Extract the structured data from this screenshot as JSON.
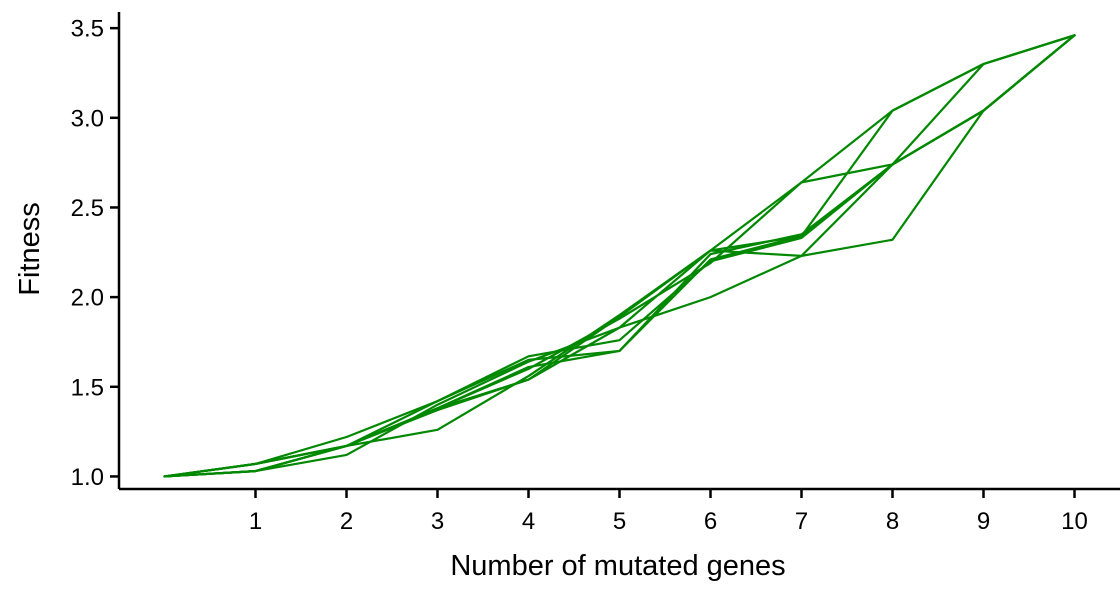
{
  "chart_data": {
    "type": "line",
    "title": "",
    "xlabel": "Number of mutated genes",
    "ylabel": "Fitness",
    "xlim": [
      -0.5,
      10.5
    ],
    "ylim": [
      0.93,
      3.59
    ],
    "xticks": [
      1,
      2,
      3,
      4,
      5,
      6,
      7,
      8,
      9,
      10
    ],
    "yticks": [
      1.0,
      1.5,
      2.0,
      2.5,
      3.0,
      3.5
    ],
    "ytick_labels": [
      "1.0",
      "1.5",
      "2.0",
      "2.5",
      "3.0",
      "3.5"
    ],
    "grid": false,
    "legend": "none",
    "line_color": "#008800",
    "x": [
      0,
      1,
      2,
      3,
      4,
      5,
      6,
      7,
      8,
      9,
      10
    ],
    "series": [
      {
        "values": [
          1.0,
          1.07,
          1.22,
          1.42,
          1.67,
          1.76,
          2.2,
          2.33,
          2.74,
          3.3,
          3.46
        ]
      },
      {
        "values": [
          1.0,
          1.03,
          1.17,
          1.38,
          1.61,
          1.7,
          2.24,
          2.35,
          2.74,
          3.04,
          3.46
        ]
      },
      {
        "values": [
          1.0,
          1.07,
          1.17,
          1.37,
          1.54,
          1.89,
          2.26,
          2.23,
          2.32,
          3.04,
          3.46
        ]
      },
      {
        "values": [
          1.0,
          1.03,
          1.12,
          1.4,
          1.64,
          1.83,
          2.0,
          2.23,
          2.74,
          3.04,
          3.46
        ]
      },
      {
        "values": [
          1.0,
          1.03,
          1.17,
          1.26,
          1.56,
          1.9,
          2.26,
          2.64,
          3.04,
          3.3,
          3.46
        ]
      },
      {
        "values": [
          1.0,
          1.07,
          1.17,
          1.42,
          1.65,
          1.7,
          2.21,
          2.34,
          3.04,
          3.3,
          3.46
        ]
      },
      {
        "values": [
          1.0,
          1.03,
          1.17,
          1.38,
          1.6,
          1.88,
          2.19,
          2.64,
          2.74,
          3.04,
          3.46
        ]
      },
      {
        "values": [
          1.0,
          1.07,
          1.17,
          1.38,
          1.54,
          1.83,
          2.26,
          2.34,
          2.74,
          3.04,
          3.46
        ]
      }
    ]
  }
}
